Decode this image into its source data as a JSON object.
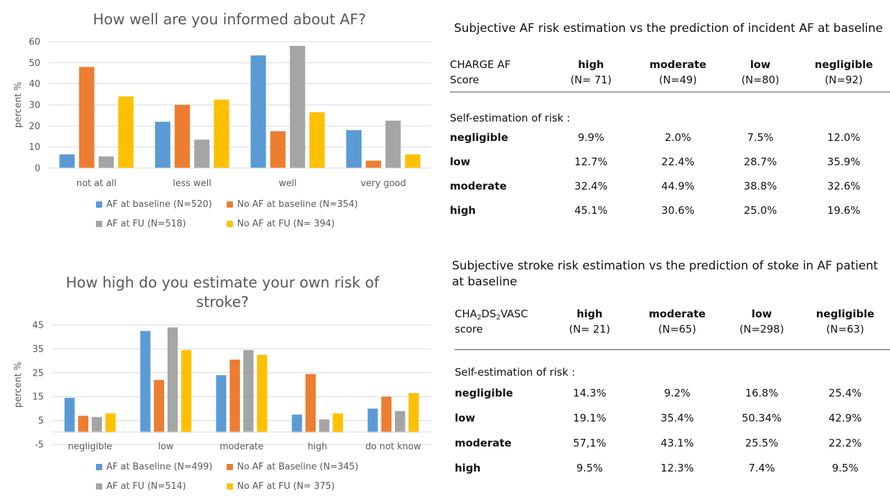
{
  "colors": {
    "blue": "#5B9BD5",
    "orange": "#ED7D31",
    "gray": "#A5A5A5",
    "yellow": "#FFC000",
    "axis_text": "#595959",
    "grid": "#D9D9D9"
  },
  "chart_data": [
    {
      "type": "bar",
      "title": "How well are you informed about AF?",
      "ylabel": "percent %",
      "xlabel": "",
      "categories": [
        "not at all",
        "less well",
        "well",
        "very good"
      ],
      "yticks": [
        0,
        10,
        20,
        30,
        40,
        50,
        60
      ],
      "ylim": [
        0,
        60
      ],
      "grid": true,
      "legend_position": "bottom",
      "series": [
        {
          "name": "AF at baseline (N=520)",
          "color": "#5B9BD5",
          "values": [
            6.5,
            22,
            53.5,
            18
          ]
        },
        {
          "name": "No AF at baseline (N=354)",
          "color": "#ED7D31",
          "values": [
            48,
            30,
            17.5,
            3.5
          ]
        },
        {
          "name": "AF at FU (N=518)",
          "color": "#A5A5A5",
          "values": [
            5.5,
            13.5,
            58,
            22.5
          ]
        },
        {
          "name": "No AF at FU (N= 394)",
          "color": "#FFC000",
          "values": [
            34,
            32.5,
            26.5,
            6.5
          ]
        }
      ]
    },
    {
      "type": "bar",
      "title": "How high do you estimate your own risk of stroke?",
      "ylabel": "percent %",
      "xlabel": "",
      "categories": [
        "negligible",
        "low",
        "moderate",
        "high",
        "do not know"
      ],
      "yticks": [
        -5,
        5,
        15,
        25,
        35,
        45
      ],
      "ylim": [
        -5,
        45
      ],
      "grid": true,
      "legend_position": "bottom",
      "series": [
        {
          "name": "AF at Baseline (N=499)",
          "color": "#5B9BD5",
          "values": [
            14.5,
            42.5,
            24,
            7.5,
            10
          ]
        },
        {
          "name": "No AF at Baseline (N=345)",
          "color": "#ED7D31",
          "values": [
            7,
            22,
            30.5,
            24.5,
            15
          ]
        },
        {
          "name": "AF at FU (N=514)",
          "color": "#A5A5A5",
          "values": [
            6.5,
            44,
            34.5,
            5.5,
            9
          ]
        },
        {
          "name": "No AF at FU (N= 375)",
          "color": "#FFC000",
          "values": [
            8,
            34.5,
            32.5,
            8,
            16.5
          ]
        }
      ]
    }
  ],
  "table1": {
    "title": "Subjective AF risk estimation vs the prediction of incident AF at baseline",
    "score_label_1": "CHARGE AF",
    "score_label_2": "Score",
    "columns": [
      {
        "label": "high",
        "n": "(N= 71)"
      },
      {
        "label": "moderate",
        "n": "(N=49)"
      },
      {
        "label": "low",
        "n": "(N=80)"
      },
      {
        "label": "negligible",
        "n": "(N=92)"
      }
    ],
    "subheading": "Self-estimation of risk :",
    "rows": [
      {
        "label": "negligible",
        "values": [
          "9.9%",
          "2.0%",
          "7.5%",
          "12.0%"
        ]
      },
      {
        "label": "low",
        "values": [
          "12.7%",
          "22.4%",
          "28.7%",
          "35.9%"
        ]
      },
      {
        "label": "moderate",
        "values": [
          "32.4%",
          "44.9%",
          "38.8%",
          "32.6%"
        ]
      },
      {
        "label": "high",
        "values": [
          "45.1%",
          "30.6%",
          "25.0%",
          "19.6%"
        ]
      }
    ]
  },
  "table2": {
    "title": "Subjective stroke risk estimation vs the prediction of stoke in AF patient at baseline",
    "score_label_a": "CHA",
    "score_label_sub1": "2",
    "score_label_b": "DS",
    "score_label_sub2": "2",
    "score_label_c": "VASC",
    "score_label_2": "score",
    "columns": [
      {
        "label": "high",
        "n": "(N= 21)"
      },
      {
        "label": "moderate",
        "n": "(N=65)"
      },
      {
        "label": "low",
        "n": "(N=298)"
      },
      {
        "label": "negligible",
        "n": "(N=63)"
      }
    ],
    "subheading": "Self-estimation of risk :",
    "rows": [
      {
        "label": "negligible",
        "values": [
          "14.3%",
          "9.2%",
          "16.8%",
          "25.4%"
        ]
      },
      {
        "label": "low",
        "values": [
          "19.1%",
          "35.4%",
          "50.34%",
          "42.9%"
        ]
      },
      {
        "label": "moderate",
        "values": [
          "57,1%",
          "43.1%",
          "25.5%",
          "22.2%"
        ]
      },
      {
        "label": "high",
        "values": [
          "9.5%",
          "12.3%",
          "7.4%",
          "9.5%"
        ]
      }
    ]
  }
}
